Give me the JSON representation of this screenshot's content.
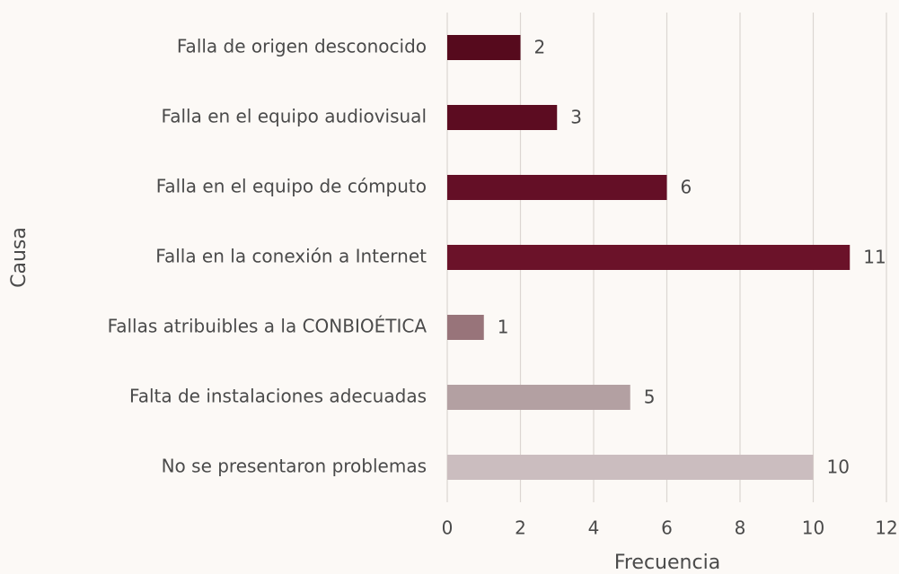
{
  "chart_data": {
    "type": "barh",
    "categories": [
      "Falla de origen desconocido",
      "Falla en el equipo audiovisual",
      "Falla en el equipo de cómputo",
      "Falla en la conexión a Internet",
      "Fallas atribuibles a la CONBIOÉTICA",
      "Falta de instalaciones adecuadas",
      "No se presentaron problemas"
    ],
    "values": [
      2,
      3,
      6,
      11,
      1,
      5,
      10
    ],
    "colors": [
      "#560a1d",
      "#5c0c21",
      "#640f26",
      "#6b1229",
      "#98747a",
      "#b3a0a2",
      "#cbbdbf"
    ],
    "xlabel": "Frecuencia",
    "ylabel": "Causa",
    "xlim": [
      0,
      12
    ],
    "xticks": [
      0,
      2,
      4,
      6,
      8,
      10,
      12
    ],
    "grid": true
  }
}
